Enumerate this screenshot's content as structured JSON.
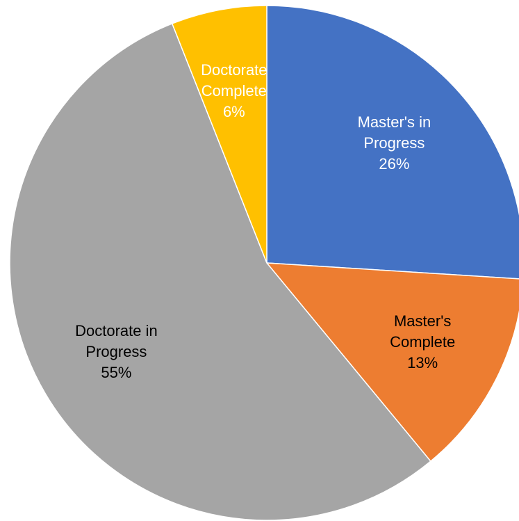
{
  "chart_data": {
    "type": "pie",
    "categories": [
      "Master's in Progress",
      "Master's Complete",
      "Doctorate in Progress",
      "Doctorate Complete"
    ],
    "values": [
      26,
      13,
      55,
      6
    ],
    "value_labels": [
      "26%",
      "13%",
      "55%",
      "6%"
    ],
    "colors": [
      "#4472c4",
      "#ed7d31",
      "#a5a5a5",
      "#ffc000"
    ],
    "label_colors": [
      "#ffffff",
      "#000000",
      "#000000",
      "#ffffff"
    ]
  }
}
